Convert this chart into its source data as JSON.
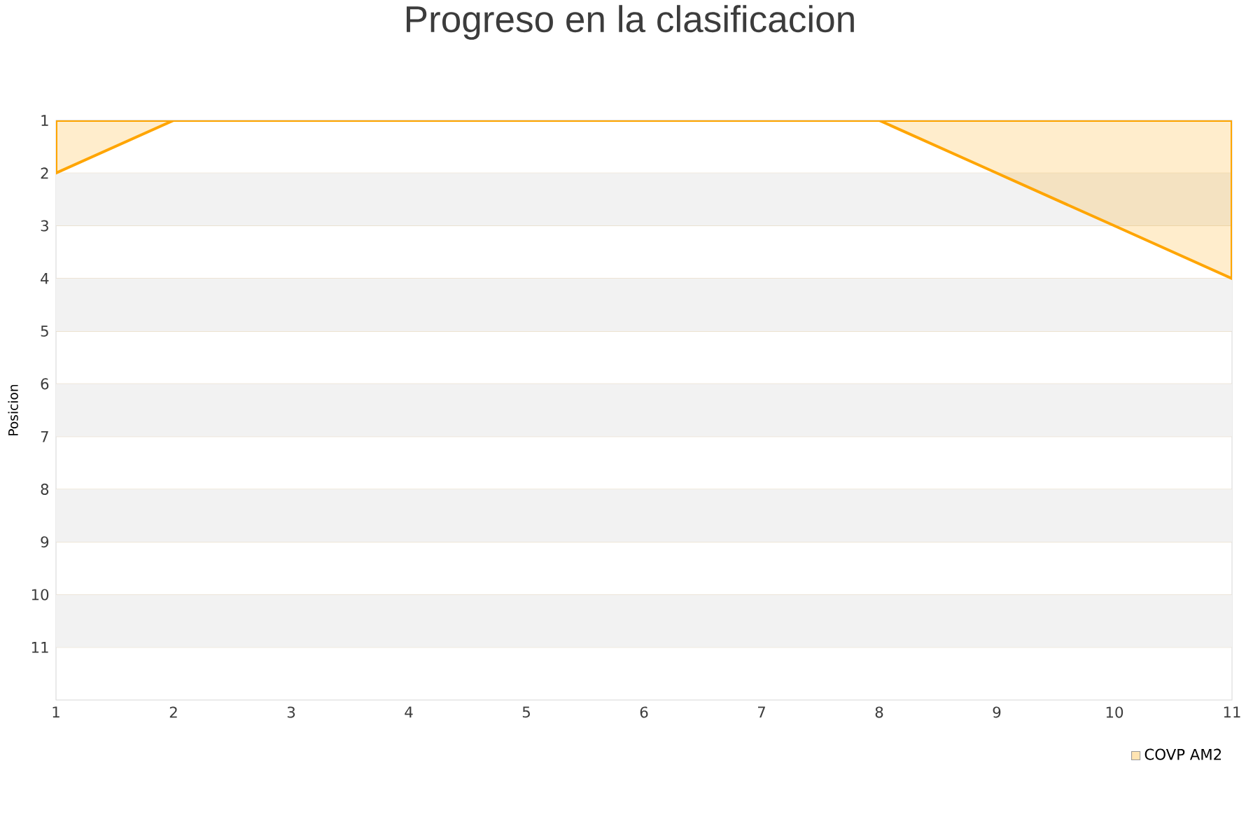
{
  "chart_data": {
    "type": "area",
    "title": "Progreso en la clasificacion",
    "ylabel": "Posicion",
    "x": [
      1,
      2,
      3,
      4,
      5,
      6,
      7,
      8,
      9,
      10,
      11
    ],
    "series": [
      {
        "name": "COVP AM2",
        "color": "#ffa500",
        "values": [
          2,
          1,
          1,
          1,
          1,
          1,
          1,
          1,
          2,
          3,
          4
        ]
      }
    ],
    "xlim": [
      1,
      11
    ],
    "xticks": [
      1,
      2,
      3,
      4,
      5,
      6,
      7,
      8,
      9,
      10,
      11
    ],
    "ylim": [
      12,
      1
    ],
    "yticks": [
      1,
      2,
      3,
      4,
      5,
      6,
      7,
      8,
      9,
      10,
      11
    ],
    "bands": [
      {
        "axis": "y",
        "from": 2,
        "to": 3,
        "color": "#f2f2f2"
      },
      {
        "axis": "y",
        "from": 4,
        "to": 5,
        "color": "#f2f2f2"
      },
      {
        "axis": "y",
        "from": 6,
        "to": 7,
        "color": "#f2f2f2"
      },
      {
        "axis": "y",
        "from": 8,
        "to": 9,
        "color": "#f2f2f2"
      },
      {
        "axis": "y",
        "from": 10,
        "to": 11,
        "color": "#f2f2f2"
      }
    ],
    "grid": "y",
    "legend": "bottom right"
  }
}
